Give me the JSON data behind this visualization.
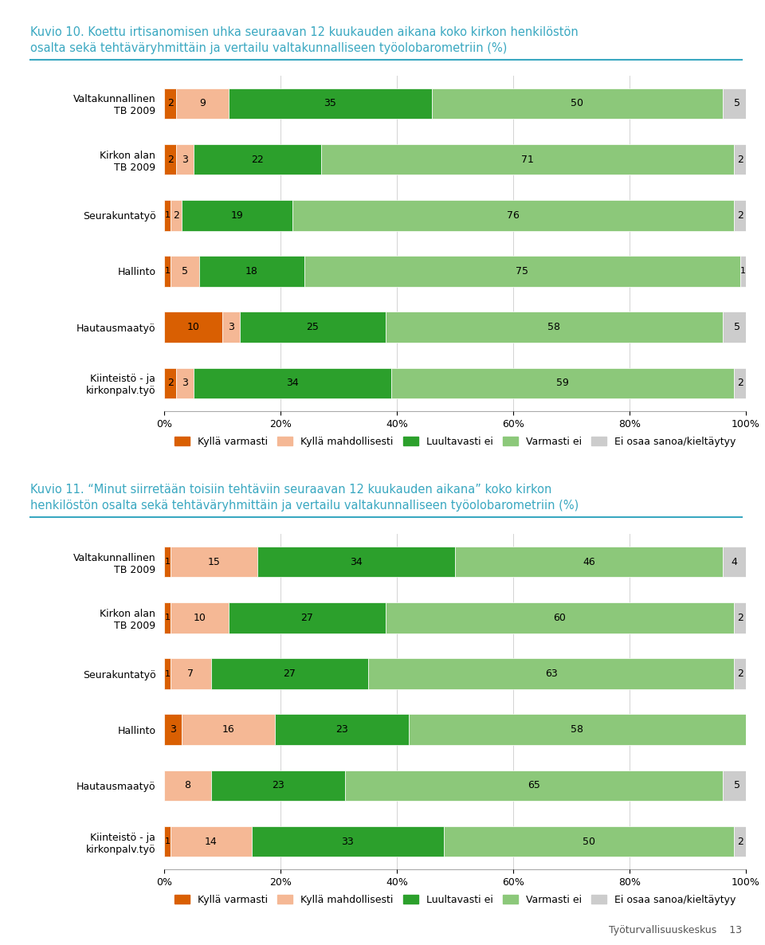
{
  "chart1": {
    "title_line1": "Kuvio 10. Koettu irtisanomisen uhka seuraavan 12 kuukauden aikana koko kirkon henkilöstön",
    "title_line2": "osalta sekä tehtäväryhmittäin ja vertailu valtakunnalliseen työolobarometriin (%)",
    "categories": [
      "Valtakunnallinen\nTB 2009",
      "Kirkon alan\nTB 2009",
      "Seurakuntatyö",
      "Hallinto",
      "Hautausmaatyö",
      "Kiinteistö - ja\nkirkonpalv.työ"
    ],
    "data": [
      [
        2,
        9,
        35,
        50,
        5
      ],
      [
        2,
        3,
        22,
        71,
        2
      ],
      [
        1,
        2,
        19,
        76,
        2
      ],
      [
        1,
        5,
        18,
        75,
        1
      ],
      [
        10,
        3,
        25,
        58,
        5
      ],
      [
        2,
        3,
        34,
        59,
        2
      ]
    ]
  },
  "chart2": {
    "title_line1": "Kuvio 11. “Minut siirretään toisiin tehtäviin seuraavan 12 kuukauden aikana” koko kirkon",
    "title_line2": "henkilöstön osalta sekä tehtäväryhmittäin ja vertailu valtakunnalliseen työolobarometriin (%)",
    "categories": [
      "Valtakunnallinen\nTB 2009",
      "Kirkon alan\nTB 2009",
      "Seurakuntatyö",
      "Hallinto",
      "Hautausmaatyö",
      "Kiinteistö - ja\nkirkonpalv.työ"
    ],
    "data": [
      [
        1,
        15,
        34,
        46,
        4
      ],
      [
        1,
        10,
        27,
        60,
        2
      ],
      [
        1,
        7,
        27,
        63,
        2
      ],
      [
        3,
        16,
        23,
        58,
        0
      ],
      [
        0,
        8,
        23,
        65,
        5
      ],
      [
        1,
        14,
        33,
        50,
        2
      ]
    ]
  },
  "colors": [
    "#d95f02",
    "#f5b895",
    "#2ca02c",
    "#8cc87a",
    "#cccccc"
  ],
  "legend_labels": [
    "Kyllä varmasti",
    "Kyllä mahdollisesti",
    "Luultavasti ei",
    "Varmasti ei",
    "Ei osaa sanoa/kieltäytyy"
  ],
  "title_color": "#3aa8c1",
  "background_color": "#ffffff",
  "bar_height": 0.55,
  "footer_text": "Työturvallisuuskeskus    13"
}
